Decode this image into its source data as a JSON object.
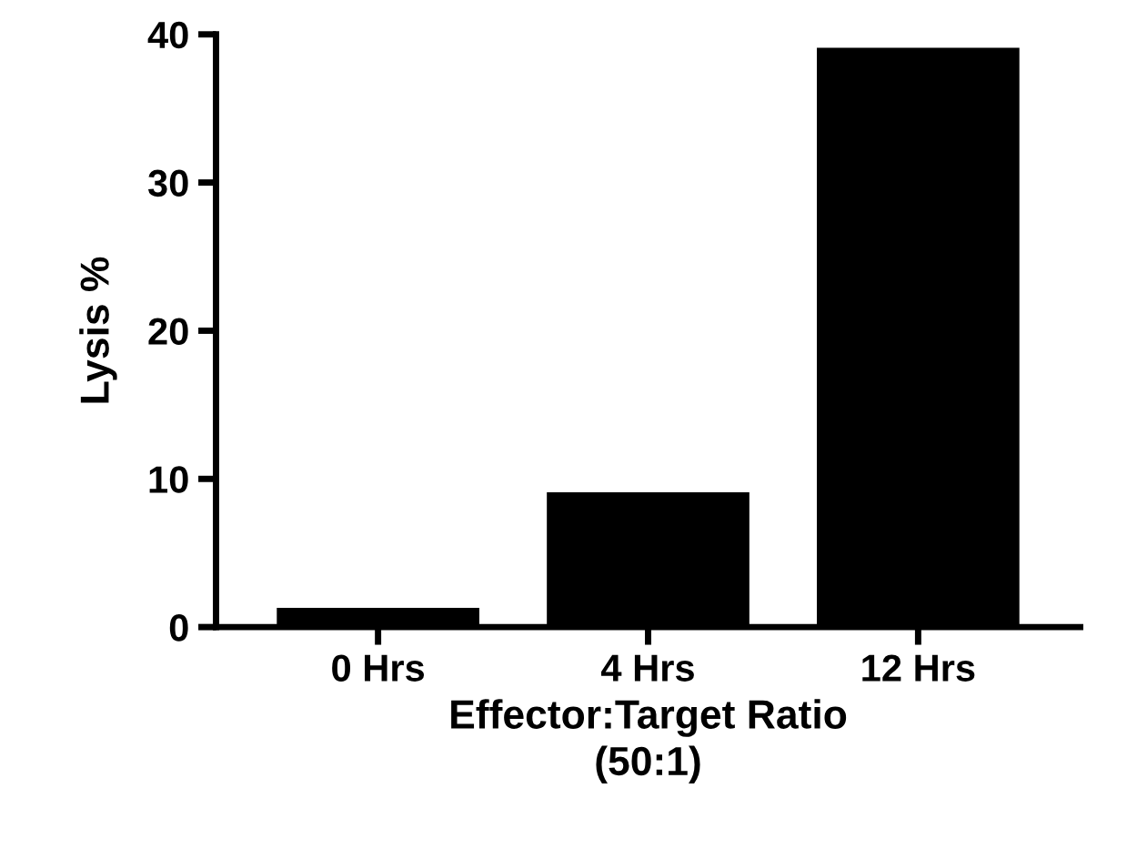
{
  "chart_data": {
    "type": "bar",
    "xlabel": "Effector:Target Ratio\n(50:1)",
    "ylabel": "Lysis %",
    "categories": [
      "0 Hrs",
      "4 Hrs",
      "12 Hrs"
    ],
    "values": [
      1.3,
      9.1,
      39.1
    ],
    "color": "#000000",
    "ylim": [
      0,
      40
    ],
    "yticks": [
      0,
      10,
      20,
      30,
      40
    ],
    "grid": false,
    "legend": false
  }
}
